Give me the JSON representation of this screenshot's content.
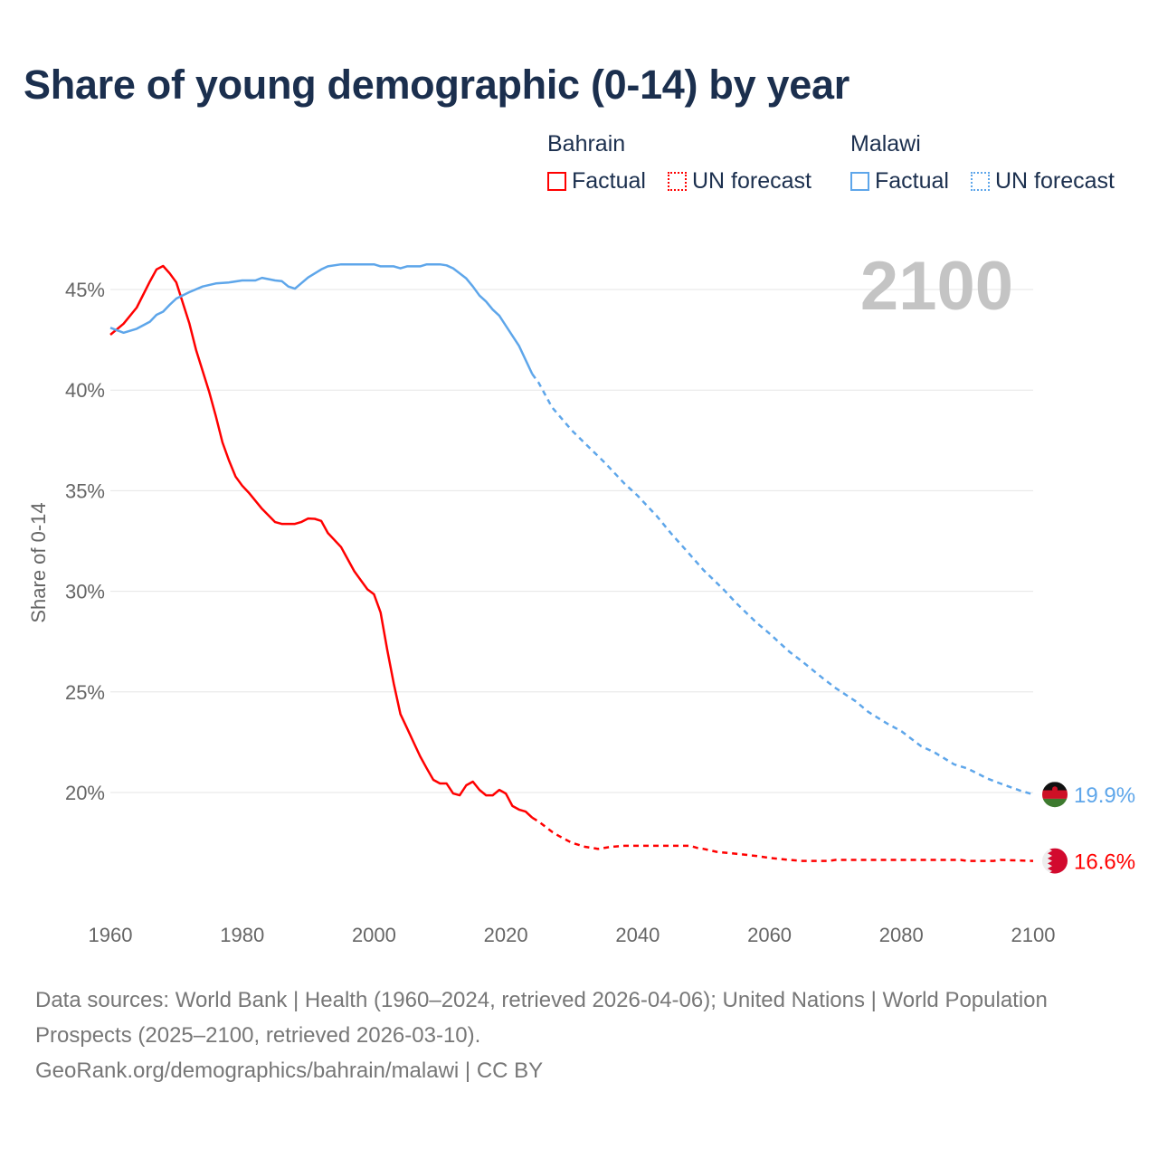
{
  "title": "Share of young demographic (0-14) by year",
  "legend": {
    "groups": [
      {
        "name": "Bahrain",
        "items": [
          "Factual",
          "UN forecast"
        ],
        "color": "#ff0000"
      },
      {
        "name": "Malawi",
        "items": [
          "Factual",
          "UN forecast"
        ],
        "color": "#5ea6ea"
      }
    ]
  },
  "current_year_label": "2100",
  "footer": {
    "line1": "Data sources: World Bank | Health (1960–2024, retrieved 2026-04-06); United Nations | World Population Prospects (2025–2100, retrieved 2026-03-10).",
    "line2": "GeoRank.org/demographics/bahrain/malawi | CC BY"
  },
  "chart_data": {
    "type": "line",
    "title": "Share of young demographic (0-14) by year",
    "xlabel": "",
    "ylabel": "Share of 0-14",
    "xlim": [
      1960,
      2100
    ],
    "ylim": [
      15,
      47.5
    ],
    "x_ticks": [
      "1960",
      "1980",
      "2000",
      "2020",
      "2040",
      "2060",
      "2080",
      "2100"
    ],
    "y_ticks": [
      "20%",
      "25%",
      "30%",
      "35%",
      "40%",
      "45%"
    ],
    "grid": true,
    "legend_position": "top-right",
    "series": [
      {
        "name": "Bahrain",
        "color": "#ff0000",
        "end_label": "16.6%",
        "factual": [
          [
            1960,
            42.75
          ],
          [
            1962,
            43.3
          ],
          [
            1964,
            44.1
          ],
          [
            1966,
            45.4
          ],
          [
            1967,
            46.0
          ],
          [
            1968,
            46.17
          ],
          [
            1969,
            45.8
          ],
          [
            1970,
            45.35
          ],
          [
            1972,
            43.3
          ],
          [
            1973,
            42.0
          ],
          [
            1975,
            39.9
          ],
          [
            1976,
            38.7
          ],
          [
            1977,
            37.4
          ],
          [
            1978,
            36.5
          ],
          [
            1979,
            35.7
          ],
          [
            1980,
            35.25
          ],
          [
            1981,
            34.9
          ],
          [
            1983,
            34.1
          ],
          [
            1985,
            33.44
          ],
          [
            1986,
            33.35
          ],
          [
            1988,
            33.35
          ],
          [
            1989,
            33.45
          ],
          [
            1990,
            33.62
          ],
          [
            1991,
            33.6
          ],
          [
            1992,
            33.5
          ],
          [
            1993,
            32.9
          ],
          [
            1995,
            32.2
          ],
          [
            1997,
            31.0
          ],
          [
            1999,
            30.1
          ],
          [
            2000,
            29.85
          ],
          [
            2001,
            28.95
          ],
          [
            2002,
            27.1
          ],
          [
            2003,
            25.4
          ],
          [
            2004,
            23.9
          ],
          [
            2005,
            23.2
          ],
          [
            2006,
            22.5
          ],
          [
            2007,
            21.8
          ],
          [
            2008,
            21.2
          ],
          [
            2009,
            20.63
          ],
          [
            2010,
            20.45
          ],
          [
            2011,
            20.45
          ],
          [
            2012,
            19.95
          ],
          [
            2013,
            19.86
          ],
          [
            2014,
            20.36
          ],
          [
            2015,
            20.54
          ],
          [
            2016,
            20.13
          ],
          [
            2017,
            19.86
          ],
          [
            2018,
            19.86
          ],
          [
            2019,
            20.13
          ],
          [
            2020,
            19.95
          ],
          [
            2021,
            19.33
          ],
          [
            2022,
            19.15
          ],
          [
            2023,
            19.05
          ],
          [
            2024,
            18.75
          ]
        ],
        "forecast": [
          [
            2024,
            18.75
          ],
          [
            2025,
            18.55
          ],
          [
            2026,
            18.3
          ],
          [
            2027,
            18.05
          ],
          [
            2028,
            17.85
          ],
          [
            2030,
            17.5
          ],
          [
            2032,
            17.3
          ],
          [
            2034,
            17.2
          ],
          [
            2036,
            17.3
          ],
          [
            2038,
            17.35
          ],
          [
            2048,
            17.35
          ],
          [
            2049,
            17.25
          ],
          [
            2050,
            17.2
          ],
          [
            2052,
            17.05
          ],
          [
            2055,
            16.95
          ],
          [
            2058,
            16.85
          ],
          [
            2060,
            16.75
          ],
          [
            2063,
            16.65
          ],
          [
            2065,
            16.6
          ],
          [
            2069,
            16.6
          ],
          [
            2070,
            16.65
          ],
          [
            2089,
            16.65
          ],
          [
            2090,
            16.6
          ],
          [
            2094,
            16.6
          ],
          [
            2095,
            16.65
          ],
          [
            2100,
            16.6
          ]
        ]
      },
      {
        "name": "Malawi",
        "color": "#5ea6ea",
        "end_label": "19.9%",
        "factual": [
          [
            1960,
            43.1
          ],
          [
            1962,
            42.85
          ],
          [
            1964,
            43.05
          ],
          [
            1966,
            43.4
          ],
          [
            1967,
            43.74
          ],
          [
            1968,
            43.9
          ],
          [
            1969,
            44.24
          ],
          [
            1970,
            44.55
          ],
          [
            1972,
            44.87
          ],
          [
            1974,
            45.15
          ],
          [
            1976,
            45.3
          ],
          [
            1978,
            45.35
          ],
          [
            1980,
            45.45
          ],
          [
            1982,
            45.45
          ],
          [
            1983,
            45.58
          ],
          [
            1985,
            45.45
          ],
          [
            1986,
            45.42
          ],
          [
            1987,
            45.15
          ],
          [
            1988,
            45.04
          ],
          [
            1990,
            45.6
          ],
          [
            1992,
            46.0
          ],
          [
            1993,
            46.15
          ],
          [
            1995,
            46.25
          ],
          [
            2000,
            46.25
          ],
          [
            2001,
            46.15
          ],
          [
            2003,
            46.15
          ],
          [
            2004,
            46.05
          ],
          [
            2005,
            46.15
          ],
          [
            2007,
            46.15
          ],
          [
            2008,
            46.25
          ],
          [
            2010,
            46.25
          ],
          [
            2011,
            46.2
          ],
          [
            2012,
            46.05
          ],
          [
            2014,
            45.55
          ],
          [
            2015,
            45.15
          ],
          [
            2016,
            44.7
          ],
          [
            2017,
            44.4
          ],
          [
            2018,
            44.0
          ],
          [
            2019,
            43.7
          ],
          [
            2020,
            43.2
          ],
          [
            2022,
            42.2
          ],
          [
            2024,
            40.8
          ]
        ],
        "forecast": [
          [
            2024,
            40.8
          ],
          [
            2025,
            40.35
          ],
          [
            2027,
            39.15
          ],
          [
            2030,
            38.0
          ],
          [
            2032,
            37.35
          ],
          [
            2035,
            36.4
          ],
          [
            2038,
            35.35
          ],
          [
            2040,
            34.75
          ],
          [
            2043,
            33.7
          ],
          [
            2045,
            32.9
          ],
          [
            2048,
            31.8
          ],
          [
            2050,
            31.05
          ],
          [
            2053,
            30.1
          ],
          [
            2055,
            29.4
          ],
          [
            2058,
            28.45
          ],
          [
            2060,
            27.9
          ],
          [
            2063,
            27.0
          ],
          [
            2065,
            26.5
          ],
          [
            2068,
            25.7
          ],
          [
            2070,
            25.2
          ],
          [
            2073,
            24.55
          ],
          [
            2075,
            24.0
          ],
          [
            2078,
            23.4
          ],
          [
            2080,
            23.05
          ],
          [
            2083,
            22.3
          ],
          [
            2085,
            22.0
          ],
          [
            2088,
            21.4
          ],
          [
            2090,
            21.2
          ],
          [
            2093,
            20.7
          ],
          [
            2095,
            20.45
          ],
          [
            2098,
            20.1
          ],
          [
            2100,
            19.9
          ]
        ]
      }
    ]
  }
}
